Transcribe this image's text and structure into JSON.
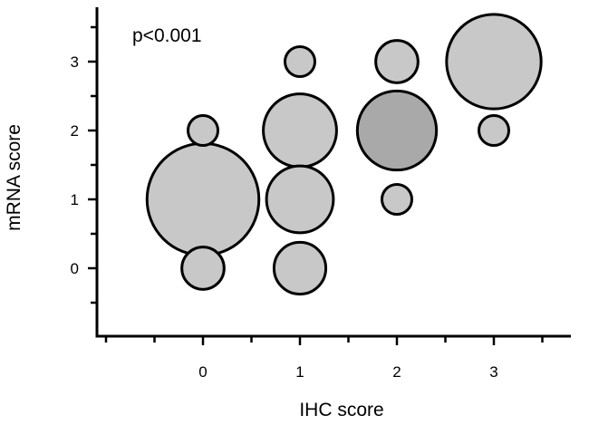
{
  "chart_data": {
    "type": "scatter",
    "subtype": "bubble",
    "title": "",
    "annotation": "p<0.001",
    "xlabel": "IHC score",
    "ylabel": "mRNA score",
    "x_ticks": [
      "0",
      "1",
      "2",
      "3"
    ],
    "y_ticks": [
      "0",
      "1",
      "2",
      "3"
    ],
    "xlim": [
      -1,
      3.8
    ],
    "ylim": [
      -1,
      3.8
    ],
    "grid": false,
    "legend": "none",
    "points": [
      {
        "x": 0,
        "y": 0,
        "size": 2,
        "color": "#c8c8c8"
      },
      {
        "x": 0,
        "y": 1,
        "size": 14,
        "color": "#c8c8c8"
      },
      {
        "x": 0,
        "y": 2,
        "size": 1,
        "color": "#c8c8c8"
      },
      {
        "x": 1,
        "y": 0,
        "size": 3,
        "color": "#c8c8c8"
      },
      {
        "x": 1,
        "y": 1,
        "size": 5,
        "color": "#c8c8c8"
      },
      {
        "x": 1,
        "y": 2,
        "size": 6,
        "color": "#c8c8c8"
      },
      {
        "x": 1,
        "y": 3,
        "size": 1,
        "color": "#c8c8c8"
      },
      {
        "x": 2,
        "y": 1,
        "size": 1,
        "color": "#c8c8c8"
      },
      {
        "x": 2,
        "y": 2,
        "size": 7,
        "color": "#a9a9a9"
      },
      {
        "x": 2,
        "y": 3,
        "size": 2,
        "color": "#c8c8c8"
      },
      {
        "x": 3,
        "y": 2,
        "size": 1,
        "color": "#c8c8c8"
      },
      {
        "x": 3,
        "y": 3,
        "size": 10,
        "color": "#c8c8c8"
      }
    ]
  }
}
